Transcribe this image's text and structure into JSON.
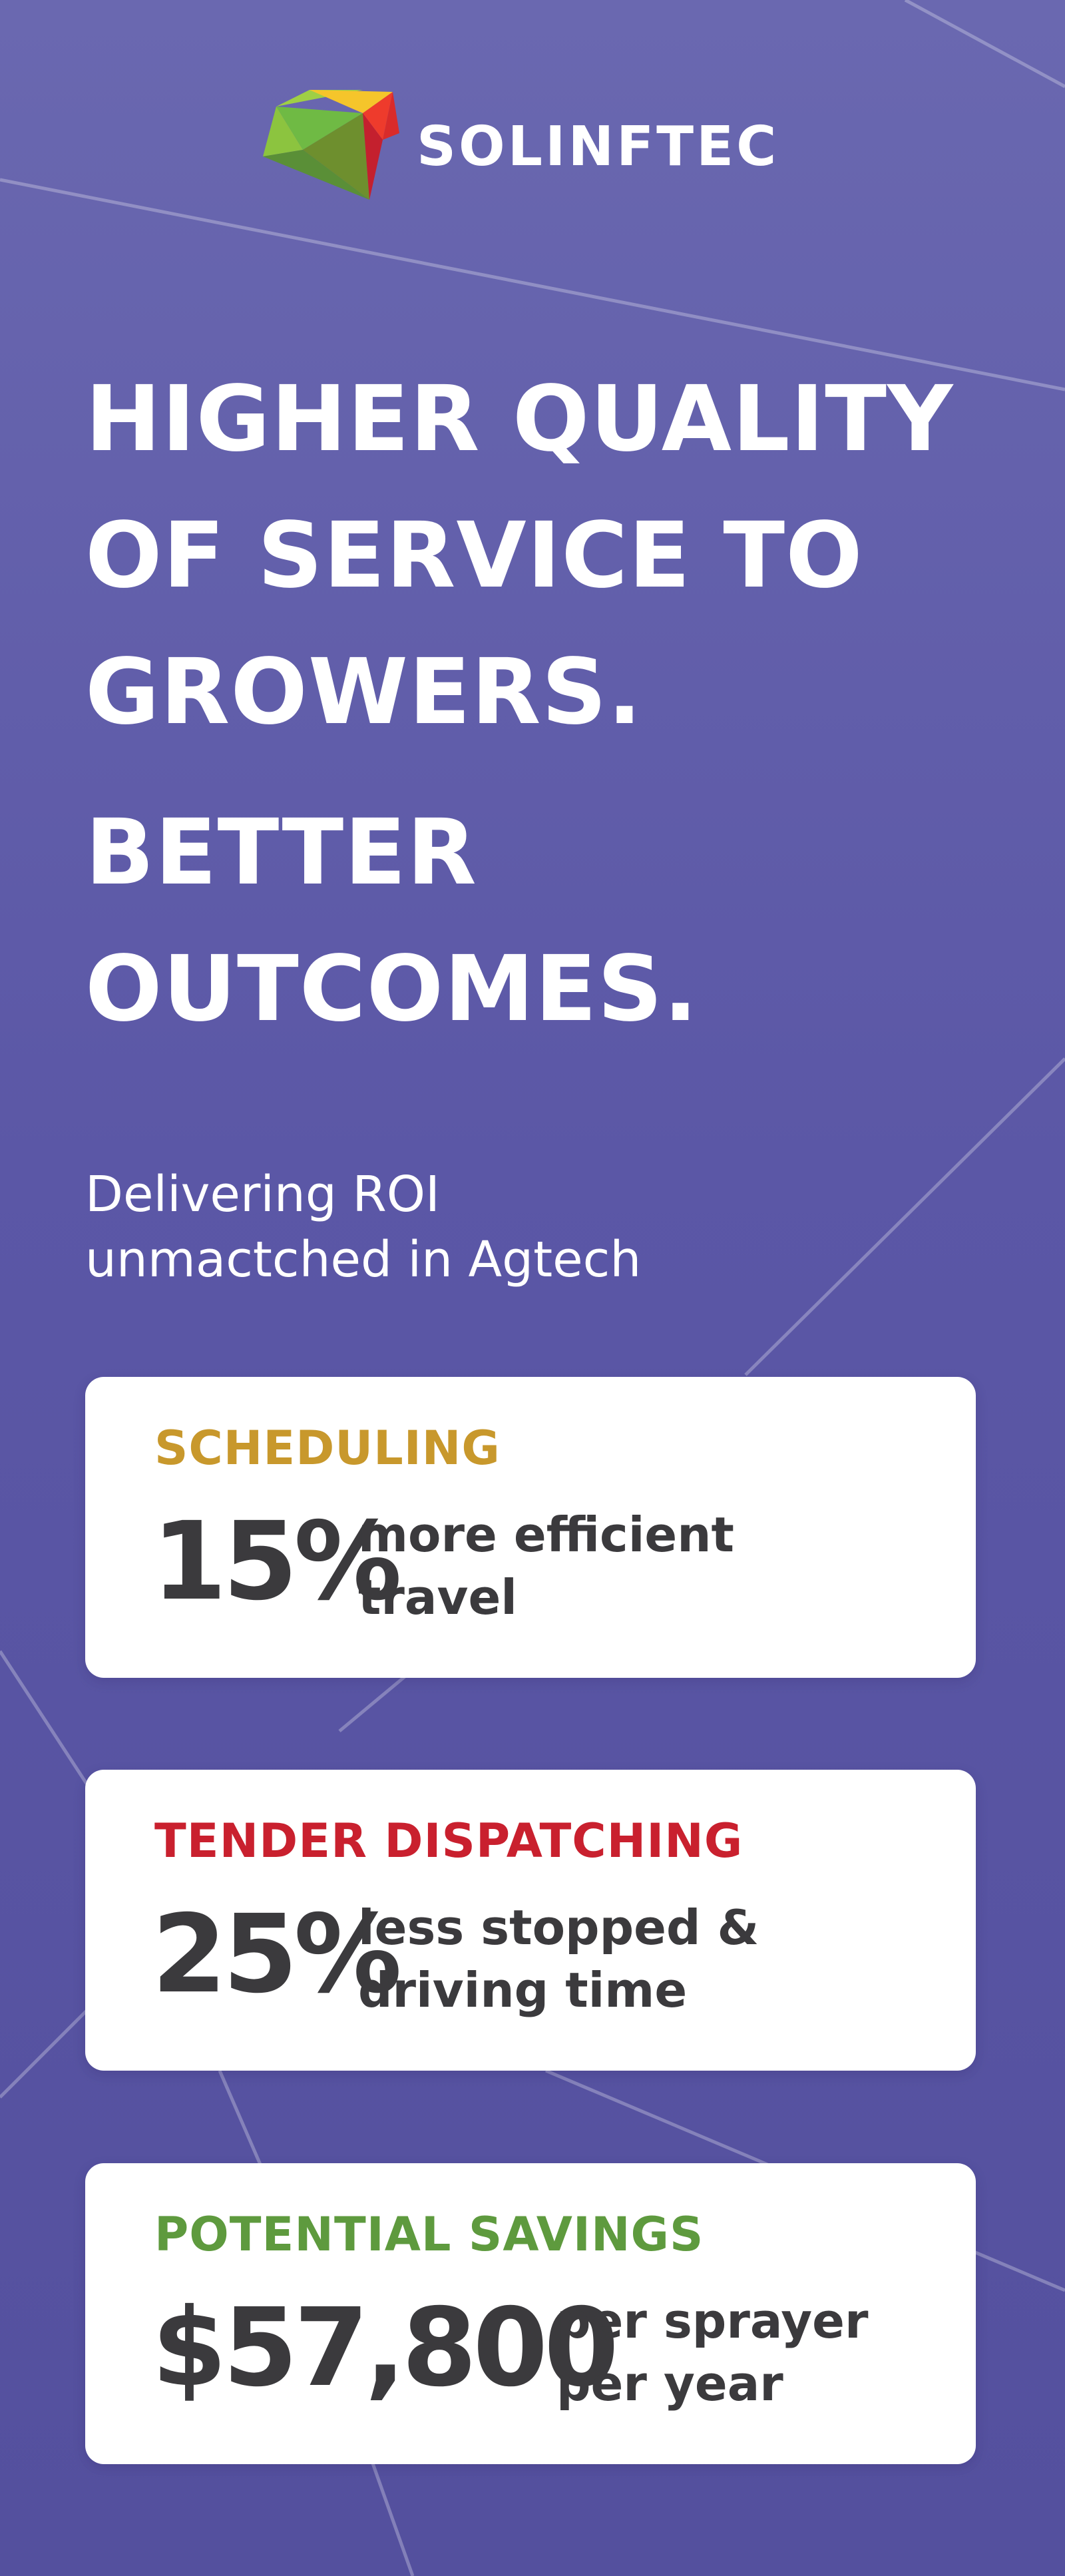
{
  "brand": {
    "name": "SOLINFTEC",
    "logo_colors": [
      "#f7c42a",
      "#ee3b2c",
      "#a5ce3a",
      "#5da844",
      "#6b8e2d",
      "#c4202e"
    ]
  },
  "headline": {
    "line1": "HIGHER QUALITY",
    "line2": "OF SERVICE TO",
    "line3": "GROWERS.",
    "line4": "BETTER",
    "line5": "OUTCOMES."
  },
  "subtitle": {
    "line1": "Delivering ROI",
    "line2": "unmactched in Agtech"
  },
  "cards": [
    {
      "title": "SCHEDULING",
      "title_color": "#c8982c",
      "stat": "15%",
      "desc_line1": "more efficient",
      "desc_line2": "travel"
    },
    {
      "title": "TENDER DISPATCHING",
      "title_color": "#c9202e",
      "stat": "25%",
      "desc_line1": "less stopped &",
      "desc_line2": "driving time"
    },
    {
      "title": "POTENTIAL SAVINGS",
      "title_color": "#5e9a3e",
      "stat": "$57,800",
      "desc_line1": "per sprayer",
      "desc_line2": "per year"
    }
  ],
  "colors": {
    "background": "#5e5aa8",
    "card_text": "#3b3a3d",
    "white": "#ffffff"
  }
}
